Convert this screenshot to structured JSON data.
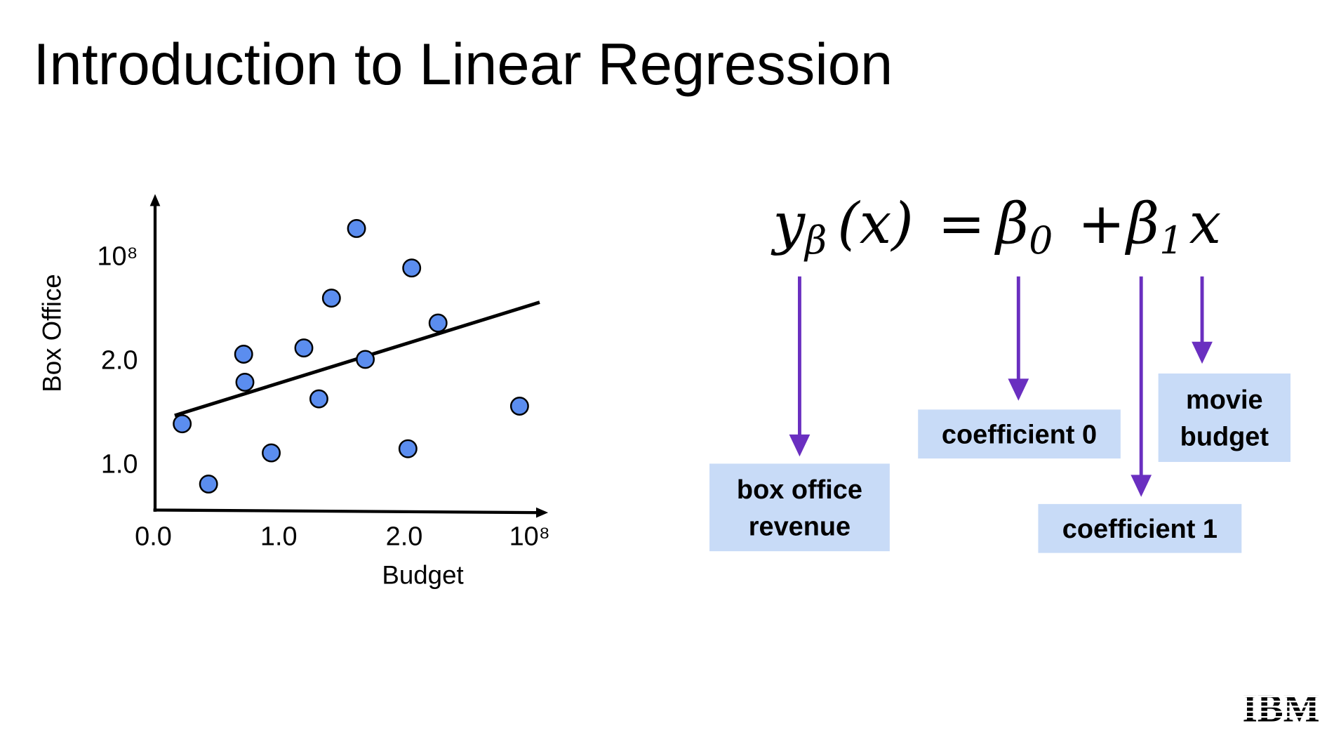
{
  "title": "Introduction to Linear Regression",
  "chart_data": {
    "type": "scatter",
    "x_label": "Budget",
    "y_label": "Box Office",
    "x": [
      0.23,
      0.44,
      0.72,
      0.73,
      0.94,
      1.2,
      1.32,
      1.42,
      1.62,
      1.69,
      2.03,
      2.06,
      2.27,
      2.92
    ],
    "values": [
      1.38,
      0.8,
      2.05,
      1.78,
      1.1,
      2.11,
      1.62,
      2.59,
      3.26,
      2.0,
      1.14,
      2.88,
      2.35,
      1.55
    ],
    "color": "#5b8def",
    "fit_line": {
      "x": [
        0.17,
        3.08
      ],
      "y": [
        1.46,
        2.55
      ],
      "color": "#000000"
    },
    "xlim": [
      0,
      3.1
    ],
    "ylim": [
      0.55,
      3.6
    ],
    "xticks": [
      {
        "value": 0,
        "label": "0.0"
      },
      {
        "value": 1,
        "label": "1.0"
      },
      {
        "value": 2,
        "label": "2.0"
      },
      {
        "value": 3,
        "label": "10⁸"
      }
    ],
    "yticks": [
      {
        "value": 1,
        "label": "1.0"
      },
      {
        "value": 2,
        "label": "2.0"
      },
      {
        "value": 3,
        "label": "10⁸"
      }
    ],
    "grid": false
  },
  "equation": {
    "parts": [
      {
        "text": "y",
        "sub": "β"
      },
      {
        "text": "(x)"
      },
      {
        "text": "="
      },
      {
        "text": "β",
        "sub": "0"
      },
      {
        "text": "+"
      },
      {
        "text": "β",
        "sub": "1"
      },
      {
        "text": "x"
      }
    ]
  },
  "annotations": [
    {
      "lines": [
        "box office",
        "revenue"
      ]
    },
    {
      "lines": [
        "coefficient 0"
      ]
    },
    {
      "lines": [
        "coefficient 1"
      ]
    },
    {
      "lines": [
        "movie",
        "budget"
      ]
    }
  ],
  "logo": "IBM"
}
